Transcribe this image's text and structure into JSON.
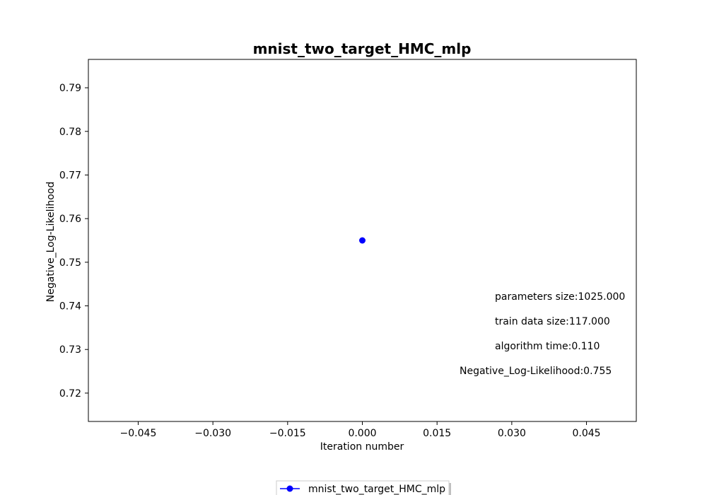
{
  "chart_data": {
    "type": "scatter",
    "title": "mnist_two_target_HMC_mlp",
    "xlabel": "Iteration number",
    "ylabel": "Negative_Log-Likelihood",
    "xlim": [
      -0.055,
      0.055
    ],
    "ylim": [
      0.7135,
      0.7965
    ],
    "xticks": [
      -0.045,
      -0.03,
      -0.015,
      0.0,
      0.015,
      0.03,
      0.045
    ],
    "xtick_labels": [
      "−0.045",
      "−0.030",
      "−0.015",
      "0.000",
      "0.015",
      "0.030",
      "0.045"
    ],
    "yticks": [
      0.72,
      0.73,
      0.74,
      0.75,
      0.76,
      0.77,
      0.78,
      0.79
    ],
    "ytick_labels": [
      "0.72",
      "0.73",
      "0.74",
      "0.75",
      "0.76",
      "0.77",
      "0.78",
      "0.79"
    ],
    "grid": false,
    "legend_position": "bottom-center",
    "series": [
      {
        "name": "mnist_two_target_HMC_mlp",
        "color": "#0000ff",
        "marker": "circle",
        "x": [
          0.0
        ],
        "y": [
          0.755
        ]
      }
    ],
    "annotations": [
      "parameters size:1025.000",
      "train data size:117.000",
      "algorithm time:0.110",
      "Negative_Log-Likelihood:0.755"
    ]
  }
}
